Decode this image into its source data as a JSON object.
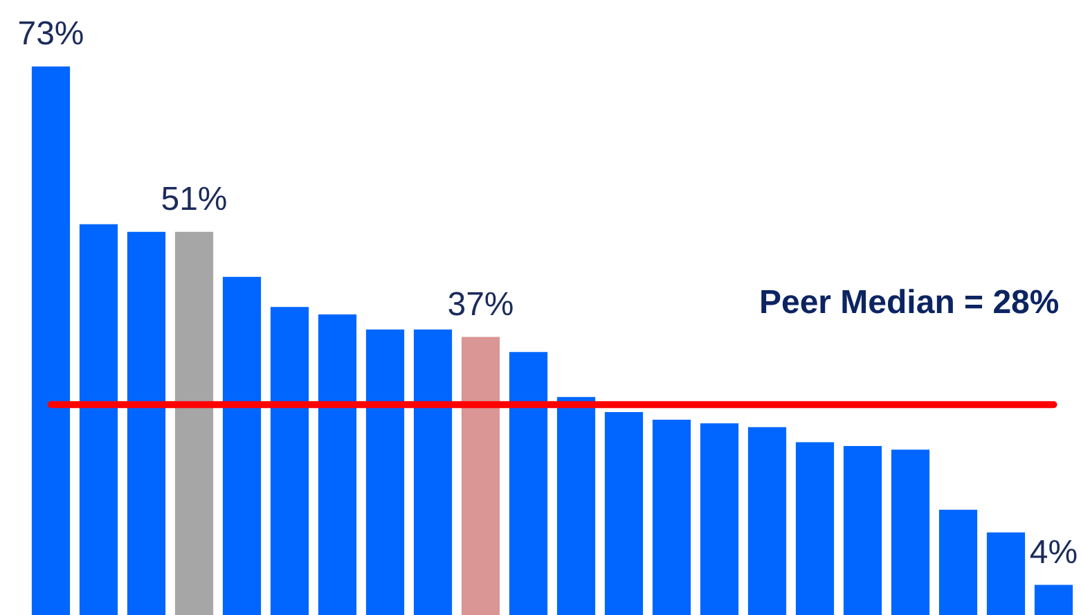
{
  "chart_data": {
    "type": "bar",
    "categories": [
      null,
      null,
      null,
      null,
      null,
      null,
      null,
      null,
      null,
      null,
      null,
      null,
      null,
      null,
      null,
      null,
      null,
      null,
      null,
      null,
      null,
      null
    ],
    "values": [
      73,
      52,
      51,
      51,
      45,
      41,
      40,
      38,
      38,
      37,
      35,
      29,
      27,
      26,
      25.5,
      25,
      23,
      22.5,
      22,
      14,
      11,
      4
    ],
    "colors": [
      "#0066ff",
      "#0066ff",
      "#0066ff",
      "#a6a6a6",
      "#0066ff",
      "#0066ff",
      "#0066ff",
      "#0066ff",
      "#0066ff",
      "#d99694",
      "#0066ff",
      "#0066ff",
      "#0066ff",
      "#0066ff",
      "#0066ff",
      "#0066ff",
      "#0066ff",
      "#0066ff",
      "#0066ff",
      "#0066ff",
      "#0066ff",
      "#0066ff"
    ],
    "value_labels": [
      "73%",
      null,
      null,
      "51%",
      null,
      null,
      null,
      null,
      null,
      "37%",
      null,
      null,
      null,
      null,
      null,
      null,
      null,
      null,
      null,
      null,
      null,
      "4%"
    ],
    "ref_lines": [
      {
        "axis": "y",
        "value": 28,
        "label": "Peer Median = 28%",
        "color": "#ff0000"
      }
    ],
    "tick_labels": false
  }
}
